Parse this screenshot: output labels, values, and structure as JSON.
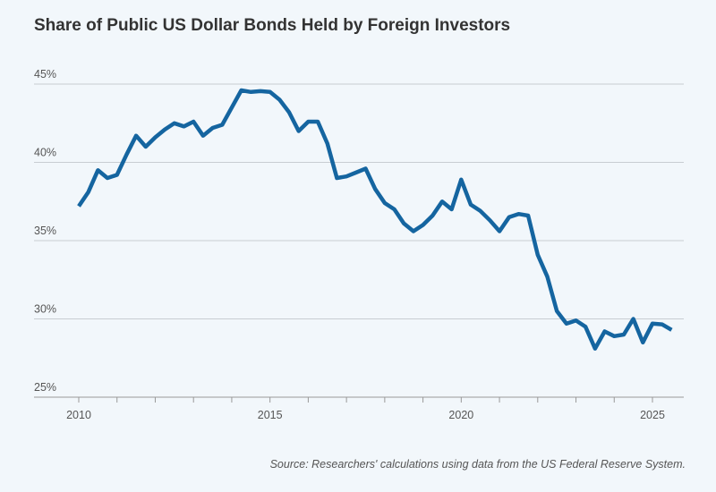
{
  "chart_data": {
    "type": "line",
    "title": "Share of Public US Dollar Bonds Held by Foreign Investors",
    "source": "Source: Researchers' calculations using data from the US Federal Reserve System.",
    "xlabel": "",
    "ylabel": "",
    "xlim": [
      2009.5,
      2025.8
    ],
    "ylim": [
      25,
      45
    ],
    "y_ticks": [
      {
        "value": 45,
        "label": "45%"
      },
      {
        "value": 40,
        "label": "40%"
      },
      {
        "value": 35,
        "label": "35%"
      },
      {
        "value": 30,
        "label": "30%"
      },
      {
        "value": 25,
        "label": "25%"
      }
    ],
    "x_ticks": [
      {
        "value": 2010,
        "label": "2010"
      },
      {
        "value": 2015,
        "label": "2015"
      },
      {
        "value": 2020,
        "label": "2020"
      },
      {
        "value": 2025,
        "label": "2025"
      }
    ],
    "x_minor_ticks": [
      2010,
      2011,
      2012,
      2013,
      2014,
      2015,
      2016,
      2017,
      2018,
      2019,
      2020,
      2021,
      2022,
      2023,
      2024,
      2025
    ],
    "grid": true,
    "colors": {
      "line": "#1565a0",
      "grid": "#c8cdd2",
      "axis": "#999999"
    },
    "series": [
      {
        "x": [
          2010.0,
          2010.25,
          2010.5,
          2010.75,
          2011.0,
          2011.25,
          2011.5,
          2011.75,
          2012.0,
          2012.25,
          2012.5,
          2012.75,
          2013.0,
          2013.25,
          2013.5,
          2013.75,
          2014.0,
          2014.25,
          2014.5,
          2014.75,
          2015.0,
          2015.25,
          2015.5,
          2015.75,
          2016.0,
          2016.25,
          2016.5,
          2016.75,
          2017.0,
          2017.25,
          2017.5,
          2017.75,
          2018.0,
          2018.25,
          2018.5,
          2018.75,
          2019.0,
          2019.25,
          2019.5,
          2019.75,
          2020.0,
          2020.25,
          2020.5,
          2020.75,
          2021.0,
          2021.25,
          2021.5,
          2021.75,
          2022.0,
          2022.25,
          2022.5,
          2022.75,
          2023.0,
          2023.25,
          2023.5,
          2023.75,
          2024.0,
          2024.25,
          2024.5,
          2024.75,
          2025.0,
          2025.25,
          2025.5
        ],
        "y": [
          37.2,
          38.1,
          39.5,
          39.0,
          39.2,
          40.5,
          41.7,
          41.0,
          41.6,
          42.1,
          42.5,
          42.3,
          42.6,
          41.7,
          42.2,
          42.4,
          43.5,
          44.6,
          44.5,
          44.55,
          44.5,
          44.0,
          43.2,
          42.0,
          42.6,
          42.6,
          41.2,
          39.0,
          39.1,
          39.35,
          39.6,
          38.3,
          37.4,
          37.0,
          36.1,
          35.6,
          36.0,
          36.6,
          37.5,
          37.0,
          38.9,
          37.3,
          36.9,
          36.3,
          35.6,
          36.5,
          36.7,
          36.6,
          34.1,
          32.7,
          30.5,
          29.7,
          29.9,
          29.5,
          28.1,
          29.2,
          28.9,
          29.0,
          30.0,
          28.5,
          29.7,
          29.65,
          29.3
        ]
      }
    ]
  }
}
